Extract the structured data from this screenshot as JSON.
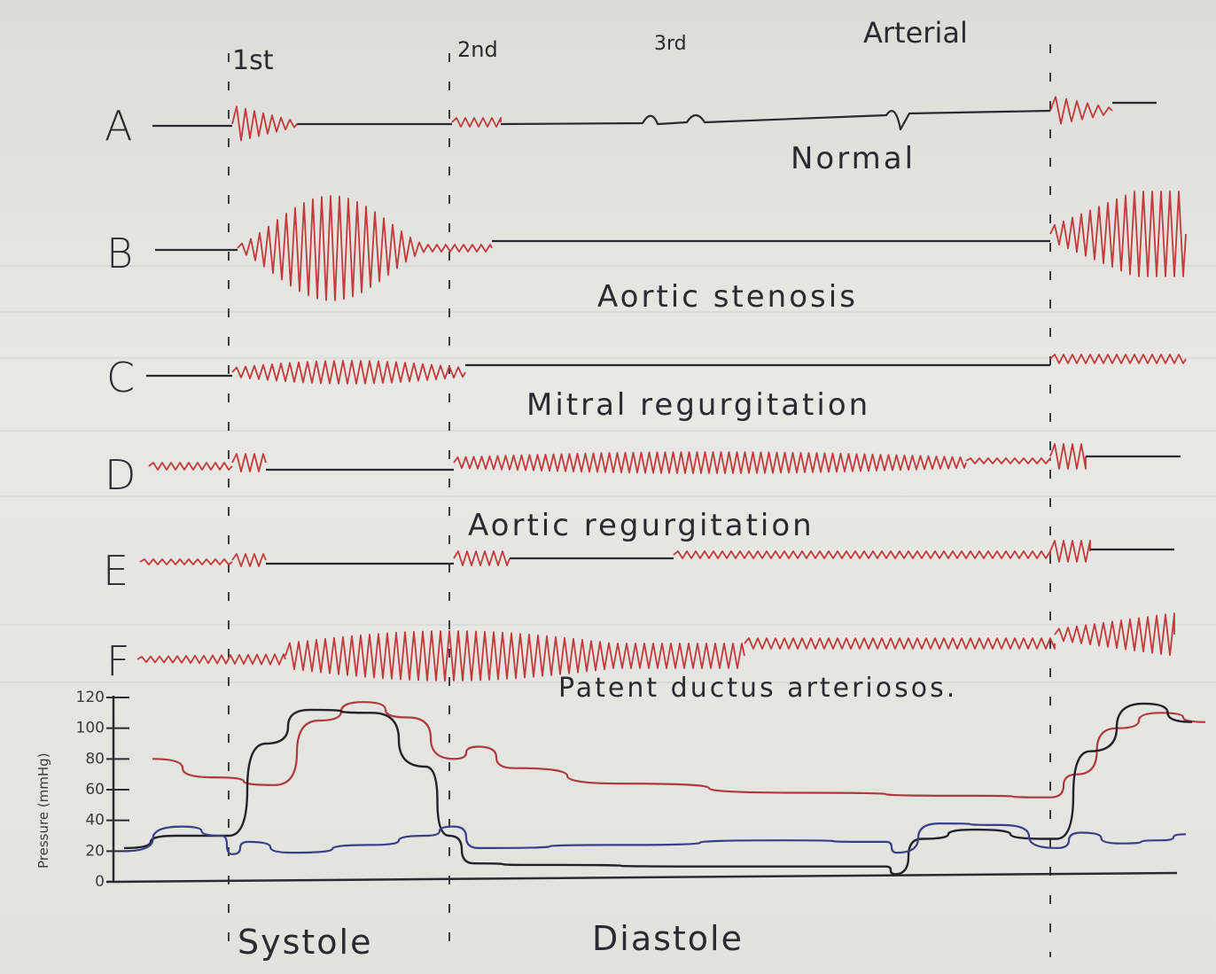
{
  "sound_labels": {
    "first": "1st",
    "second": "2nd",
    "third": "3rd",
    "arterial": "Arterial"
  },
  "rows": [
    {
      "id": "A",
      "label": "A",
      "title": "Normal"
    },
    {
      "id": "B",
      "label": "B",
      "title": "Aortic stenosis"
    },
    {
      "id": "C",
      "label": "C",
      "title": "Mitral regurgitation"
    },
    {
      "id": "D",
      "label": "D",
      "title": "Aortic regurgitation"
    },
    {
      "id": "E",
      "label": "E",
      "title": ""
    },
    {
      "id": "F",
      "label": "F",
      "title": "Patent ductus arteriosos."
    }
  ],
  "pressure_chart": {
    "ylabel": "Pressure (mmHg)",
    "yticks": [
      "0",
      "20",
      "40",
      "60",
      "80",
      "100",
      "120"
    ],
    "series_colors": {
      "aortic": "#b03a3a",
      "ventricular": "#222228",
      "atrial": "#3a3f8a"
    }
  },
  "phases": {
    "systole": "Systole",
    "diastole": "Diastole"
  },
  "colors": {
    "murmur": "#c23a3a",
    "baseline": "#2a2a30",
    "guide": "#2a2a30",
    "paper": "#e4e4e0"
  }
}
